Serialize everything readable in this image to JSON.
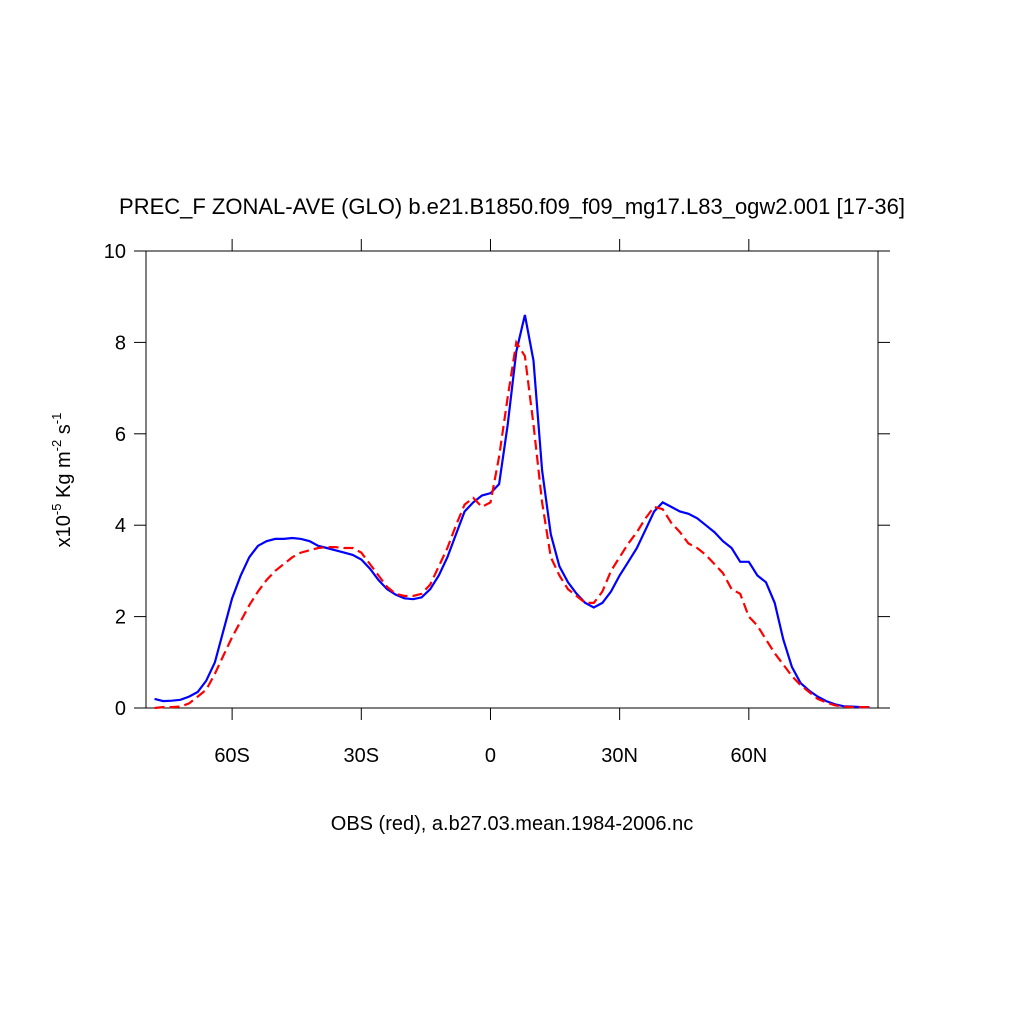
{
  "chart_data": {
    "type": "line",
    "title": "PREC_F ZONAL-AVE (GLO) b.e21.B1850.f09_f09_mg17.L83_ogw2.001 [17-36]",
    "x_label": "OBS (red), a.b27.03.mean.1984-2006.nc",
    "y_label_parts": [
      "x10",
      "-5",
      " Kg m",
      "-2",
      " s",
      "-1"
    ],
    "x": [
      -78,
      -76,
      -74,
      -72,
      -70,
      -68,
      -66,
      -64,
      -62,
      -60,
      -58,
      -56,
      -54,
      -52,
      -50,
      -48,
      -46,
      -44,
      -42,
      -40,
      -38,
      -36,
      -34,
      -32,
      -30,
      -28,
      -26,
      -24,
      -22,
      -20,
      -18,
      -16,
      -14,
      -12,
      -10,
      -8,
      -6,
      -4,
      -2,
      0,
      2,
      4,
      6,
      8,
      10,
      12,
      14,
      16,
      18,
      20,
      22,
      24,
      26,
      28,
      30,
      32,
      34,
      36,
      38,
      40,
      42,
      44,
      46,
      48,
      50,
      52,
      54,
      56,
      58,
      60,
      62,
      64,
      66,
      68,
      70,
      72,
      74,
      76,
      78,
      80,
      82,
      84,
      86,
      88
    ],
    "series": [
      {
        "color": "#0000ff",
        "dashed": false,
        "values": [
          0.2,
          0.15,
          0.16,
          0.18,
          0.25,
          0.35,
          0.6,
          1.0,
          1.7,
          2.4,
          2.9,
          3.3,
          3.55,
          3.65,
          3.7,
          3.7,
          3.72,
          3.7,
          3.65,
          3.55,
          3.5,
          3.45,
          3.4,
          3.35,
          3.25,
          3.05,
          2.8,
          2.6,
          2.48,
          2.4,
          2.38,
          2.42,
          2.6,
          2.9,
          3.3,
          3.8,
          4.3,
          4.5,
          4.65,
          4.7,
          4.9,
          6.2,
          7.8,
          8.6,
          7.6,
          5.2,
          3.8,
          3.1,
          2.75,
          2.5,
          2.3,
          2.2,
          2.3,
          2.55,
          2.9,
          3.2,
          3.5,
          3.9,
          4.3,
          4.5,
          4.4,
          4.3,
          4.25,
          4.15,
          4.0,
          3.85,
          3.65,
          3.5,
          3.2,
          3.2,
          2.9,
          2.75,
          2.3,
          1.5,
          0.9,
          0.55,
          0.38,
          0.25,
          0.15,
          0.08,
          0.04,
          0.03,
          0.02,
          0.02
        ]
      },
      {
        "color": "#ff0000",
        "dashed": true,
        "values": [
          0.0,
          0.02,
          0.02,
          0.03,
          0.1,
          0.25,
          0.4,
          0.75,
          1.15,
          1.55,
          1.9,
          2.25,
          2.55,
          2.8,
          3.0,
          3.15,
          3.3,
          3.4,
          3.45,
          3.5,
          3.52,
          3.52,
          3.5,
          3.5,
          3.4,
          3.15,
          2.9,
          2.65,
          2.5,
          2.45,
          2.45,
          2.5,
          2.7,
          3.1,
          3.5,
          4.0,
          4.45,
          4.6,
          4.4,
          4.5,
          5.5,
          6.8,
          8.0,
          7.7,
          6.2,
          4.5,
          3.3,
          2.9,
          2.6,
          2.45,
          2.3,
          2.3,
          2.55,
          3.0,
          3.3,
          3.6,
          3.85,
          4.15,
          4.4,
          4.35,
          4.05,
          3.85,
          3.6,
          3.5,
          3.35,
          3.15,
          2.95,
          2.6,
          2.5,
          2.0,
          1.8,
          1.5,
          1.2,
          0.95,
          0.7,
          0.5,
          0.35,
          0.2,
          0.12,
          0.06,
          0.03,
          0.02,
          0.02,
          0.02
        ]
      }
    ],
    "xlim": [
      -80,
      90
    ],
    "xticks": [
      {
        "value": -60,
        "label": "60S"
      },
      {
        "value": -30,
        "label": "30S"
      },
      0,
      {
        "value": 30,
        "label": "30N"
      },
      {
        "value": 60,
        "label": "60N"
      }
    ],
    "ylim": [
      0,
      10
    ],
    "yticks": [
      0,
      2,
      4,
      6,
      8,
      10
    ],
    "grid": false
  }
}
